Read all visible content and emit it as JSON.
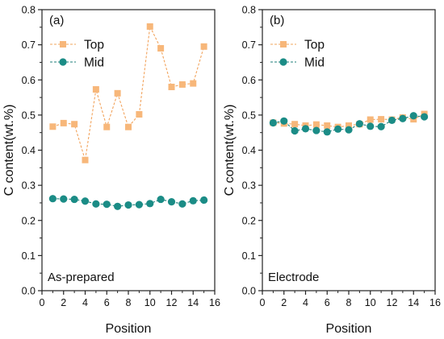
{
  "figure": {
    "marker_colors": {
      "top": "#F7B77A",
      "mid": "#1B8C86"
    },
    "line_colors": {
      "top": "#F2A45E",
      "mid": "#1E7E79"
    }
  },
  "chart_data": [
    {
      "type": "line",
      "panel_label": "(a)",
      "annotation": "As-prepared",
      "xlabel": "Position",
      "ylabel": "C content(wt.%)",
      "xlim": [
        0,
        16
      ],
      "ylim": [
        0,
        0.8
      ],
      "xticks": [
        "0",
        "2",
        "4",
        "6",
        "8",
        "10",
        "12",
        "14",
        "16"
      ],
      "yticks": [
        "0.0",
        "0.1",
        "0.2",
        "0.3",
        "0.4",
        "0.5",
        "0.6",
        "0.7",
        "0.8"
      ],
      "legend_position": "top-left",
      "grid": false,
      "x": [
        1,
        2,
        3,
        4,
        5,
        6,
        7,
        8,
        9,
        10,
        11,
        12,
        13,
        14,
        15
      ],
      "series": [
        {
          "name": "Top",
          "marker": "square",
          "values": [
            0.467,
            0.477,
            0.474,
            0.372,
            0.573,
            0.466,
            0.562,
            0.466,
            0.502,
            0.752,
            0.69,
            0.58,
            0.587,
            0.59,
            0.695
          ]
        },
        {
          "name": "Mid",
          "marker": "circle",
          "values": [
            0.262,
            0.261,
            0.26,
            0.255,
            0.247,
            0.246,
            0.24,
            0.244,
            0.245,
            0.248,
            0.26,
            0.253,
            0.247,
            0.256,
            0.258
          ]
        }
      ]
    },
    {
      "type": "line",
      "panel_label": "(b)",
      "annotation": "Electrode",
      "xlabel": "Position",
      "ylabel": "C content(wt.%)",
      "xlim": [
        0,
        16
      ],
      "ylim": [
        0,
        0.8
      ],
      "xticks": [
        "0",
        "2",
        "4",
        "6",
        "8",
        "10",
        "12",
        "14",
        "16"
      ],
      "yticks": [
        "0.0",
        "0.1",
        "0.2",
        "0.3",
        "0.4",
        "0.5",
        "0.6",
        "0.7",
        "0.8"
      ],
      "legend_position": "top-left",
      "grid": false,
      "x": [
        1,
        2,
        3,
        4,
        5,
        6,
        7,
        8,
        9,
        10,
        11,
        12,
        13,
        14,
        15
      ],
      "series": [
        {
          "name": "Top",
          "marker": "square",
          "values": [
            0.478,
            0.476,
            0.474,
            0.47,
            0.473,
            0.47,
            0.466,
            0.47,
            0.474,
            0.487,
            0.488,
            0.487,
            0.493,
            0.488,
            0.503
          ]
        },
        {
          "name": "Mid",
          "marker": "circle",
          "values": [
            0.478,
            0.483,
            0.455,
            0.461,
            0.456,
            0.452,
            0.46,
            0.458,
            0.475,
            0.468,
            0.467,
            0.485,
            0.49,
            0.498,
            0.495
          ]
        }
      ]
    }
  ]
}
